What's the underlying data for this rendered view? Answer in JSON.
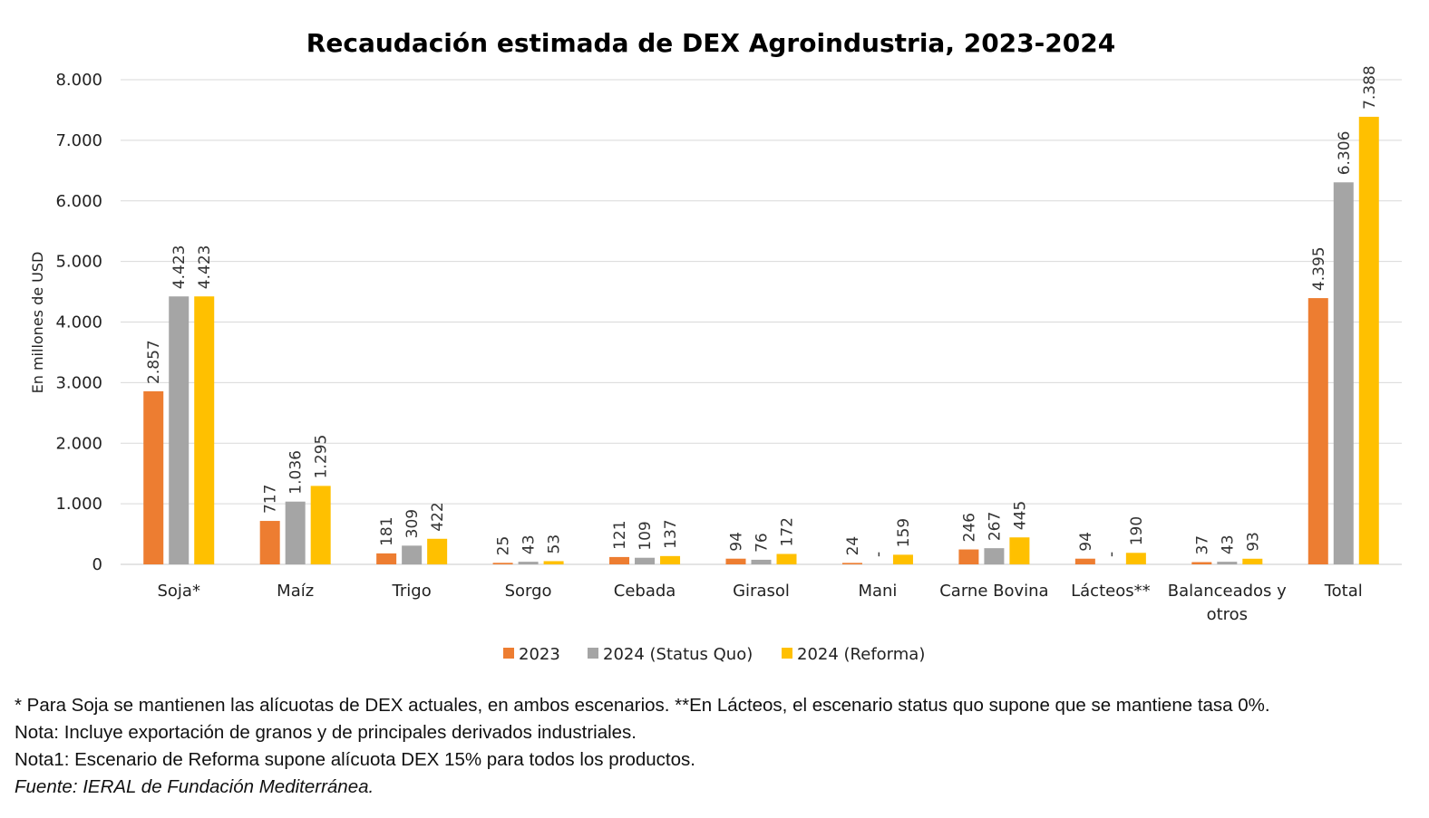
{
  "chart_data": {
    "type": "bar",
    "title": "Recaudación estimada de DEX Agroindustria, 2023-2024",
    "xlabel": "",
    "ylabel": "En millones de USD",
    "ylim": [
      0,
      8000
    ],
    "yticks": [
      0,
      1000,
      2000,
      3000,
      4000,
      5000,
      6000,
      7000,
      8000
    ],
    "ytick_labels": [
      "0",
      "1.000",
      "2.000",
      "3.000",
      "4.000",
      "5.000",
      "6.000",
      "7.000",
      "8.000"
    ],
    "grid": true,
    "legend_position": "bottom",
    "categories": [
      [
        "Soja*"
      ],
      [
        "Maíz"
      ],
      [
        "Trigo"
      ],
      [
        "Sorgo"
      ],
      [
        "Cebada"
      ],
      [
        "Girasol"
      ],
      [
        "Mani"
      ],
      [
        "Carne Bovina"
      ],
      [
        "Lácteos**"
      ],
      [
        "Balanceados y",
        "otros"
      ],
      [
        "Total"
      ]
    ],
    "series": [
      {
        "name": "2023",
        "color": "#ED7D31",
        "values": [
          2857,
          717,
          181,
          25,
          121,
          94,
          24,
          246,
          94,
          37,
          4395
        ],
        "labels": [
          "2.857",
          "717",
          "181",
          "25",
          "121",
          "94",
          "24",
          "246",
          "94",
          "37",
          "4.395"
        ]
      },
      {
        "name": "2024 (Status Quo)",
        "color": "#A5A5A5",
        "values": [
          4423,
          1036,
          309,
          43,
          109,
          76,
          0,
          267,
          0,
          43,
          6306
        ],
        "labels": [
          "4.423",
          "1.036",
          "309",
          "43",
          "109",
          "76",
          "-",
          "267",
          "-",
          "43",
          "6.306"
        ]
      },
      {
        "name": "2024 (Reforma)",
        "color": "#FFC000",
        "values": [
          4423,
          1295,
          422,
          53,
          137,
          172,
          159,
          445,
          190,
          93,
          7388
        ],
        "labels": [
          "4.423",
          "1.295",
          "422",
          "53",
          "137",
          "172",
          "159",
          "445",
          "190",
          "93",
          "7.388"
        ]
      }
    ]
  },
  "notes": {
    "line1": "* Para Soja se mantienen las alícuotas de DEX actuales, en ambos escenarios. **En Lácteos, el escenario status quo supone que se mantiene tasa 0%.",
    "line2": "Nota: Incluye exportación de granos y de principales derivados industriales.",
    "line3": "Nota1: Escenario de Reforma supone alícuota DEX 15% para todos los productos.",
    "source": "Fuente: IERAL de Fundación Mediterránea."
  }
}
